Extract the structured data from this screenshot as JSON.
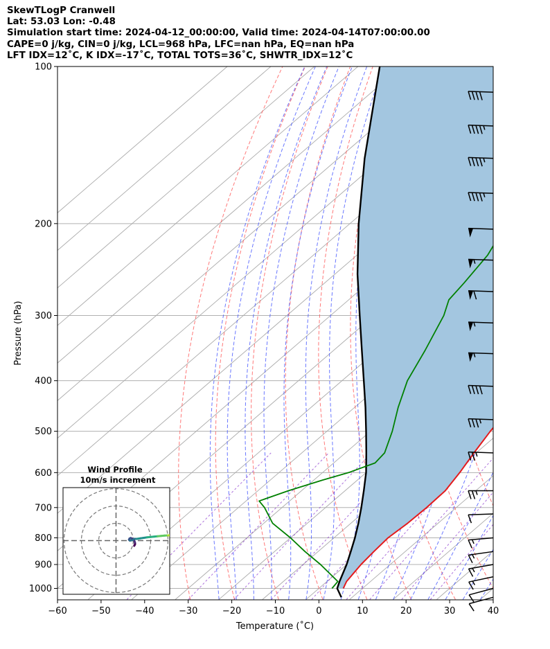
{
  "header": {
    "title": "SkewTLogP Cranwell",
    "location": "Lat: 53.03   Lon: -0.48",
    "times": "Simulation start time: 2024-04-12_00:00:00, Valid time: 2024-04-14T07:00:00.00",
    "params": "CAPE=0 j/kg, CIN=0 j/kg, LCL=968 hPa, LFC=nan hPa, EQ=nan hPa",
    "indices": "LFT IDX=12˚C, K IDX=-17˚C, TOTAL TOTS=36˚C, SHWTR_IDX=12˚C"
  },
  "colors": {
    "temperature": "#e41a1c",
    "dewpoint": "#008000",
    "parcel": "#000000",
    "cape_fill": "#a3c6e0",
    "isotherm": "#aaaaaa",
    "dry_adiabat": "#ff5555",
    "moist_adiabat": "#4455ff",
    "mixing_ratio": "#8833cc"
  },
  "chart_data": {
    "type": "line",
    "xlabel": "Temperature (˚C)",
    "ylabel": "Pressure (hPa)",
    "xlim": [
      -60,
      40
    ],
    "ylim": [
      1050,
      100
    ],
    "y_scale": "log",
    "x_ticks": [
      "−60",
      "−50",
      "−40",
      "−30",
      "−20",
      "−10",
      "0",
      "10",
      "20",
      "30",
      "40"
    ],
    "y_ticks": [
      "1000",
      "900",
      "800",
      "700",
      "600",
      "500",
      "400",
      "300",
      "200",
      "100"
    ],
    "grid": true,
    "series": [
      {
        "key": "temperature",
        "points": [
          [
            1000,
            5.6
          ],
          [
            970,
            4.5
          ],
          [
            900,
            3.3
          ],
          [
            850,
            2.8
          ],
          [
            800,
            2.4
          ],
          [
            750,
            3
          ],
          [
            700,
            3.2
          ],
          [
            650,
            3
          ],
          [
            600,
            1.5
          ],
          [
            550,
            -0.5
          ],
          [
            500,
            -2.5
          ],
          [
            450,
            -4.3
          ],
          [
            400,
            -6
          ],
          [
            350,
            -8
          ],
          [
            300,
            -10
          ],
          [
            270,
            -12.5
          ],
          [
            250,
            -14
          ],
          [
            225,
            -16.5
          ],
          [
            200,
            -20
          ],
          [
            180,
            -24
          ],
          [
            165,
            -26.5
          ],
          [
            150,
            -29.5
          ],
          [
            130,
            -35
          ],
          [
            115,
            -40
          ],
          [
            100,
            -46
          ]
        ]
      },
      {
        "key": "dewpoint",
        "points": [
          [
            1000,
            3
          ],
          [
            970,
            2.5
          ],
          [
            900,
            -6
          ],
          [
            850,
            -13
          ],
          [
            800,
            -20
          ],
          [
            750,
            -28
          ],
          [
            700,
            -34
          ],
          [
            680,
            -37
          ],
          [
            650,
            -33
          ],
          [
            620,
            -28
          ],
          [
            600,
            -24
          ],
          [
            575,
            -20.5
          ],
          [
            550,
            -21
          ],
          [
            500,
            -25
          ],
          [
            450,
            -30
          ],
          [
            400,
            -35
          ],
          [
            350,
            -39
          ],
          [
            300,
            -44
          ],
          [
            280,
            -47
          ],
          [
            260,
            -48
          ],
          [
            230,
            -50
          ],
          [
            200,
            -54
          ],
          [
            175,
            -57
          ],
          [
            150,
            -57
          ],
          [
            130,
            -56
          ],
          [
            115,
            -55.5
          ],
          [
            100,
            -55
          ]
        ]
      },
      {
        "key": "parcel",
        "points": [
          [
            1040,
            7.5
          ],
          [
            1000,
            4.2
          ],
          [
            968,
            2.8
          ],
          [
            900,
            0
          ],
          [
            850,
            -2.5
          ],
          [
            800,
            -5.2
          ],
          [
            750,
            -8.3
          ],
          [
            700,
            -11.8
          ],
          [
            650,
            -15.7
          ],
          [
            600,
            -20
          ],
          [
            550,
            -25.2
          ],
          [
            500,
            -31
          ],
          [
            450,
            -37.5
          ],
          [
            400,
            -45
          ],
          [
            350,
            -53.5
          ],
          [
            300,
            -63.3
          ],
          [
            250,
            -74.8
          ],
          [
            200,
            -88
          ],
          [
            150,
            -104
          ],
          [
            100,
            -125
          ]
        ]
      }
    ],
    "wind_barbs": [
      {
        "p": 1040,
        "speed_kt": 10,
        "dir_deg": 255
      },
      {
        "p": 1000,
        "speed_kt": 10,
        "dir_deg": 255
      },
      {
        "p": 950,
        "speed_kt": 15,
        "dir_deg": 258
      },
      {
        "p": 900,
        "speed_kt": 15,
        "dir_deg": 260
      },
      {
        "p": 850,
        "speed_kt": 15,
        "dir_deg": 262
      },
      {
        "p": 800,
        "speed_kt": 15,
        "dir_deg": 265
      },
      {
        "p": 720,
        "speed_kt": 10,
        "dir_deg": 268
      },
      {
        "p": 650,
        "speed_kt": 25,
        "dir_deg": 270
      },
      {
        "p": 550,
        "speed_kt": 25,
        "dir_deg": 272
      },
      {
        "p": 475,
        "speed_kt": 35,
        "dir_deg": 272
      },
      {
        "p": 410,
        "speed_kt": 40,
        "dir_deg": 272
      },
      {
        "p": 355,
        "speed_kt": 55,
        "dir_deg": 272
      },
      {
        "p": 310,
        "speed_kt": 55,
        "dir_deg": 272
      },
      {
        "p": 270,
        "speed_kt": 60,
        "dir_deg": 272
      },
      {
        "p": 235,
        "speed_kt": 55,
        "dir_deg": 272
      },
      {
        "p": 205,
        "speed_kt": 50,
        "dir_deg": 272
      },
      {
        "p": 175,
        "speed_kt": 45,
        "dir_deg": 272
      },
      {
        "p": 150,
        "speed_kt": 45,
        "dir_deg": 272
      },
      {
        "p": 130,
        "speed_kt": 45,
        "dir_deg": 272
      },
      {
        "p": 112,
        "speed_kt": 40,
        "dir_deg": 272
      }
    ],
    "hodograph": {
      "title": "Wind Profile",
      "subtitle": "10m/s increment",
      "rings_ms": [
        10,
        20,
        30
      ],
      "points_uv_ms": [
        [
          0.5,
          -3
        ],
        [
          0.8,
          -2.5
        ],
        [
          1,
          -2
        ],
        [
          0.9,
          -1
        ],
        [
          0.5,
          0
        ],
        [
          -0.5,
          1
        ],
        [
          -1.5,
          1.5
        ],
        [
          -2.2,
          1.2
        ],
        [
          -2.5,
          0.5
        ],
        [
          -2,
          0
        ],
        [
          -0.5,
          0.3
        ],
        [
          0.5,
          1
        ],
        [
          2,
          1
        ],
        [
          4,
          1.3
        ],
        [
          6,
          1.6
        ],
        [
          8,
          1.9
        ],
        [
          10,
          2.1
        ],
        [
          12,
          2.3
        ],
        [
          14,
          2.5
        ],
        [
          16,
          2.7
        ],
        [
          18,
          2.9
        ],
        [
          20,
          3.0
        ],
        [
          22,
          3.1
        ],
        [
          24,
          3.2
        ],
        [
          26,
          3.3
        ],
        [
          28,
          3.4
        ],
        [
          30,
          3.5
        ],
        [
          32,
          3.8
        ]
      ]
    }
  }
}
